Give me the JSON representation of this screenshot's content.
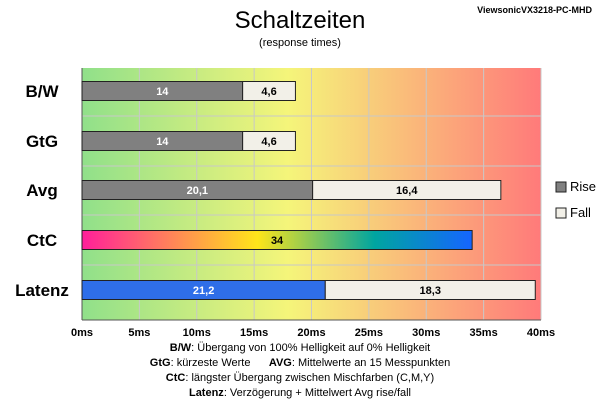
{
  "header": {
    "title": "Schaltzeiten",
    "subtitle": "(response times)",
    "model": "ViewsonicVX3218-PC-MHD"
  },
  "chart_data": {
    "type": "bar",
    "orientation": "horizontal",
    "stacked": true,
    "title": "Schaltzeiten",
    "subtitle": "(response times)",
    "categories": [
      "B/W",
      "GtG",
      "Avg",
      "CtC",
      "Latenz"
    ],
    "series": [
      {
        "name": "Rise",
        "values": [
          14,
          14,
          20.1,
          34,
          21.2
        ],
        "labels": [
          "14",
          "14",
          "20,1",
          "34",
          "21,2"
        ]
      },
      {
        "name": "Fall",
        "values": [
          4.6,
          4.6,
          16.4,
          null,
          18.3
        ],
        "labels": [
          "4,6",
          "4,6",
          "16,4",
          "",
          "18,3"
        ]
      }
    ],
    "xlim": [
      0,
      40
    ],
    "xticks": [
      0,
      5,
      10,
      15,
      20,
      25,
      30,
      35,
      40
    ],
    "xtick_labels": [
      "0ms",
      "5ms",
      "10ms",
      "15ms",
      "20ms",
      "25ms",
      "30ms",
      "35ms",
      "40ms"
    ],
    "grid": true,
    "legend": "right",
    "background_gradient": [
      "#90e08a",
      "#f5f57a",
      "#ff7a7a"
    ],
    "colors": {
      "rise": "#808080",
      "fall": "#f2f0e8",
      "latenz": "#2f6ee8",
      "ctc_gradient": [
        "#ff1f9a",
        "#ffe51a",
        "#00a5a0",
        "#1565ff"
      ]
    }
  },
  "notes": [
    {
      "key": "B/W",
      "text": ":  Übergang von 100% Helligkeit auf 0% Helligkeit"
    },
    {
      "key": "GtG",
      "text": ": kürzeste  Werte",
      "key2": "AVG",
      "text2": ": Mittelwerte  an 15 Messpunkten"
    },
    {
      "key": "CtC",
      "text": ": längster Übergang  zwischen Mischfarben (C,M,Y)"
    },
    {
      "key": "Latenz",
      "text": ": Verzögerung  + Mittelwert Avg rise/fall"
    }
  ]
}
